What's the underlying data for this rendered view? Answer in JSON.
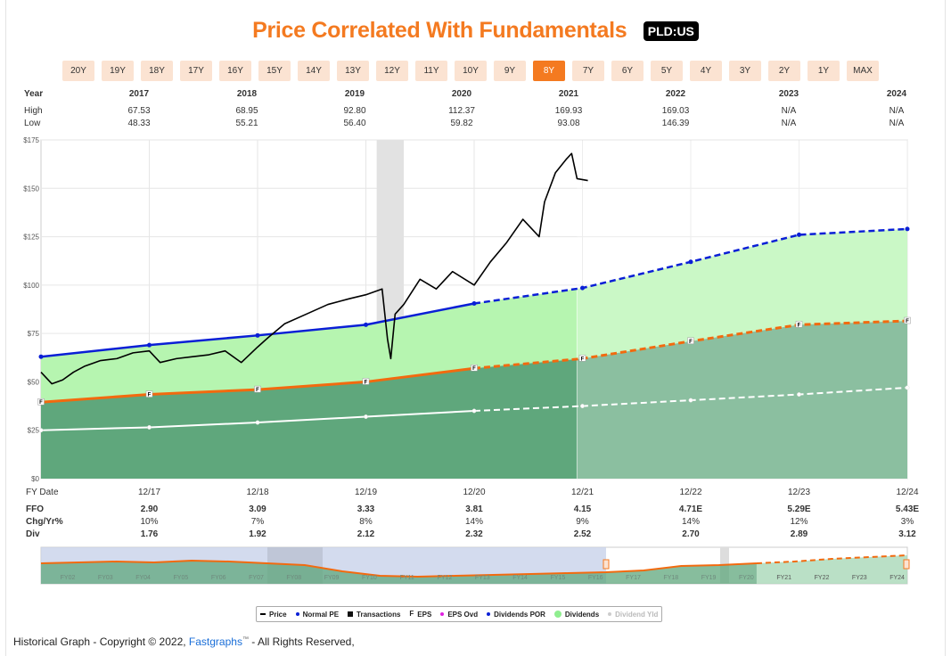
{
  "header": {
    "title": "Price Correlated With Fundamentals",
    "ticker": "PLD:US"
  },
  "ranges": [
    "20Y",
    "19Y",
    "18Y",
    "17Y",
    "16Y",
    "15Y",
    "14Y",
    "13Y",
    "12Y",
    "11Y",
    "10Y",
    "9Y",
    "8Y",
    "7Y",
    "6Y",
    "5Y",
    "4Y",
    "3Y",
    "2Y",
    "1Y",
    "MAX"
  ],
  "active_range": "8Y",
  "top_table": {
    "year_label": "Year",
    "high_label": "High",
    "low_label": "Low",
    "years": [
      "2017",
      "2018",
      "2019",
      "2020",
      "2021",
      "2022",
      "2023",
      "2024"
    ],
    "high": [
      "67.53",
      "68.95",
      "92.80",
      "112.37",
      "169.93",
      "169.03",
      "N/A",
      "N/A"
    ],
    "low": [
      "48.33",
      "55.21",
      "56.40",
      "59.82",
      "93.08",
      "146.39",
      "N/A",
      "N/A"
    ]
  },
  "bottom_table": {
    "fy_label": "FY Date",
    "ffo_label": "FFO",
    "chg_label": "Chg/Yr%",
    "div_label": "Div",
    "dates": [
      "12/17",
      "12/18",
      "12/19",
      "12/20",
      "12/21",
      "12/22",
      "12/23",
      "12/24"
    ],
    "ffo": [
      "2.90",
      "3.09",
      "3.33",
      "3.81",
      "4.15",
      "4.71E",
      "5.29E",
      "5.43E"
    ],
    "chg": [
      "10%",
      "7%",
      "8%",
      "14%",
      "9%",
      "14%",
      "12%",
      "3%"
    ],
    "div": [
      "1.76",
      "1.92",
      "2.12",
      "2.32",
      "2.52",
      "2.70",
      "2.89",
      "3.12"
    ]
  },
  "chart_data": {
    "type": "line",
    "y_ticks": [
      "$175",
      "$150",
      "$125",
      "$100",
      "$75",
      "$50",
      "$25",
      "$0"
    ],
    "ylim": [
      0,
      175
    ],
    "xlim": [
      2016.95,
      2024.95
    ],
    "projection_start": 2021.9,
    "recession_band": [
      2020.05,
      2020.3
    ],
    "series": [
      {
        "name": "Normal PE",
        "color": "#0a1fd6",
        "x": [
          2016.95,
          2017.95,
          2018.95,
          2019.95,
          2020.95,
          2021.95,
          2022.95,
          2023.95,
          2024.95
        ],
        "y": [
          63,
          69,
          74,
          79.5,
          90.5,
          98.5,
          112,
          126,
          129
        ]
      },
      {
        "name": "EPS",
        "color": "#f26a0f",
        "marker": "F",
        "x": [
          2016.95,
          2017.95,
          2018.95,
          2019.95,
          2020.95,
          2021.95,
          2022.95,
          2023.95,
          2024.95
        ],
        "y": [
          39.5,
          43.5,
          46,
          50,
          57,
          62,
          71,
          79.5,
          81.5
        ]
      },
      {
        "name": "Dividends POR",
        "color": "#ffffff",
        "x": [
          2016.95,
          2017.95,
          2018.95,
          2019.95,
          2020.95,
          2021.95,
          2022.95,
          2023.95,
          2024.95
        ],
        "y": [
          25,
          26.5,
          29,
          32,
          35,
          37.5,
          40.5,
          43.5,
          47
        ]
      },
      {
        "name": "Price",
        "color": "#000000",
        "x": [
          2016.95,
          2017.05,
          2017.15,
          2017.25,
          2017.35,
          2017.5,
          2017.65,
          2017.8,
          2017.95,
          2018.05,
          2018.2,
          2018.35,
          2018.5,
          2018.65,
          2018.8,
          2018.95,
          2019.05,
          2019.2,
          2019.4,
          2019.6,
          2019.8,
          2019.95,
          2020.1,
          2020.15,
          2020.18,
          2020.22,
          2020.3,
          2020.45,
          2020.6,
          2020.75,
          2020.95,
          2021.1,
          2021.25,
          2021.4,
          2021.55,
          2021.6,
          2021.7,
          2021.8,
          2021.85,
          2021.9,
          2022.0
        ],
        "y": [
          55,
          49,
          51,
          55,
          58,
          61,
          62,
          65,
          66,
          60,
          62,
          63,
          64,
          66,
          60,
          68,
          73,
          80,
          85,
          90,
          93,
          95,
          98,
          72,
          62,
          85,
          90,
          103,
          98,
          107,
          100,
          112,
          122,
          134,
          125,
          143,
          158,
          165,
          168,
          155,
          154
        ]
      }
    ],
    "legend": [
      "Price",
      "Normal PE",
      "Transactions",
      "EPS",
      "EPS Ovd",
      "Dividends POR",
      "Dividends",
      "Dividend Yld"
    ],
    "overview_labels": [
      "FY02",
      "FY03",
      "FY04",
      "FY05",
      "FY06",
      "FY07",
      "FY08",
      "FY09",
      "FY10",
      "FY11",
      "FY12",
      "FY13",
      "FY14",
      "FY15",
      "FY16",
      "FY17",
      "FY18",
      "FY19",
      "FY20",
      "FY21",
      "FY22",
      "FY23",
      "FY24"
    ]
  },
  "footer": {
    "prefix": "Historical Graph - Copyright © 2022, ",
    "brand": "Fastgraphs",
    "tm": "™",
    "suffix": " - All Rights Reserved,"
  }
}
